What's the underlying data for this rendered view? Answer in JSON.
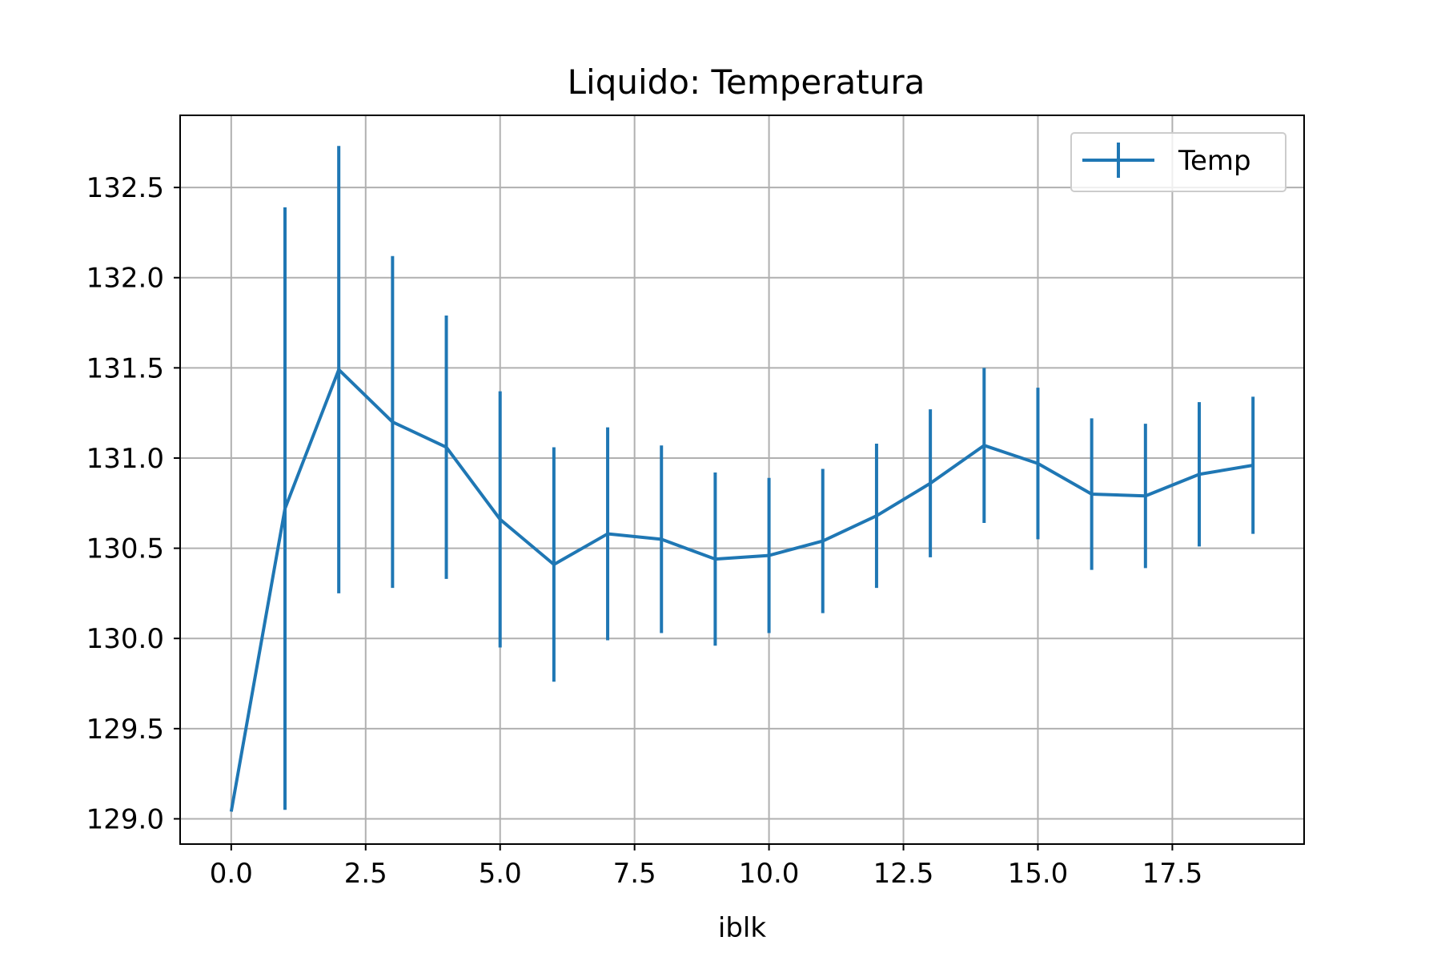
{
  "chart_data": {
    "type": "line",
    "title": "Liquido: Temperatura",
    "xlabel": "iblk",
    "ylabel": "",
    "xlim": [
      -0.95,
      19.95
    ],
    "ylim": [
      128.86,
      132.9
    ],
    "xticks": [
      0.0,
      2.5,
      5.0,
      7.5,
      10.0,
      12.5,
      15.0,
      17.5
    ],
    "xtick_labels": [
      "0.0",
      "2.5",
      "5.0",
      "7.5",
      "10.0",
      "12.5",
      "15.0",
      "17.5"
    ],
    "yticks": [
      129.0,
      129.5,
      130.0,
      130.5,
      131.0,
      131.5,
      132.0,
      132.5
    ],
    "ytick_labels": [
      "129.0",
      "129.5",
      "130.0",
      "130.5",
      "131.0",
      "131.5",
      "132.0",
      "132.5"
    ],
    "grid": true,
    "legend_position": "top-right",
    "series": [
      {
        "name": "Temp",
        "color": "#1f77b4",
        "x": [
          0,
          1,
          2,
          3,
          4,
          5,
          6,
          7,
          8,
          9,
          10,
          11,
          12,
          13,
          14,
          15,
          16,
          17,
          18,
          19
        ],
        "y": [
          129.04,
          130.72,
          131.49,
          131.2,
          131.06,
          130.66,
          130.41,
          130.58,
          130.55,
          130.44,
          130.46,
          130.54,
          130.68,
          130.86,
          131.07,
          130.97,
          130.8,
          130.79,
          130.91,
          130.96
        ],
        "err": [
          0,
          1.67,
          1.24,
          0.92,
          0.73,
          0.71,
          0.65,
          0.59,
          0.52,
          0.48,
          0.43,
          0.4,
          0.4,
          0.41,
          0.43,
          0.42,
          0.42,
          0.4,
          0.4,
          0.38
        ]
      }
    ]
  }
}
